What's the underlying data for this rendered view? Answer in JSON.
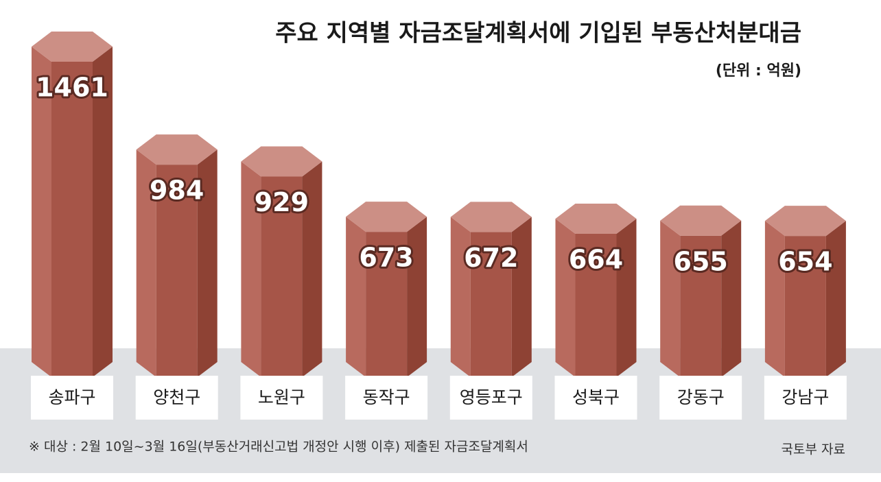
{
  "chart_data": {
    "type": "bar",
    "title": "주요 지역별 자금조달계획서에 기입된 부동산처분대금",
    "subtitle": "(단위 : 억원)",
    "categories": [
      "송파구",
      "양천구",
      "노원구",
      "동작구",
      "영등포구",
      "성북구",
      "강동구",
      "강남구"
    ],
    "values": [
      1461,
      984,
      929,
      673,
      672,
      664,
      655,
      654
    ],
    "color": "#a65548",
    "note": "※ 대상 : 2월 10일~3월 16일(부동산거래신고법 개정안 시행 이후) 제출된 자금조달계획서",
    "source": "국토부 자료"
  }
}
